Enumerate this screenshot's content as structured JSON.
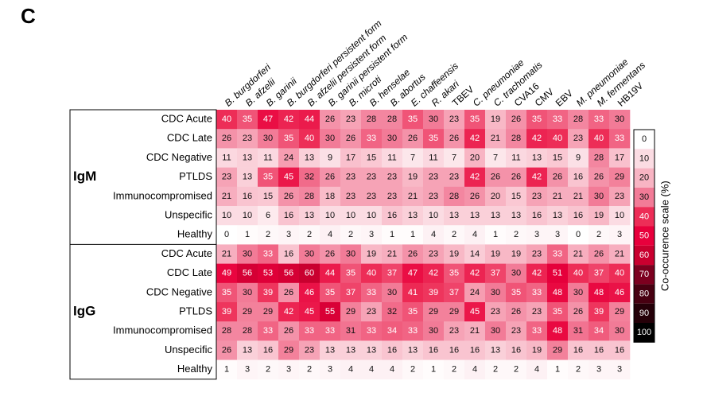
{
  "chart_data": {
    "type": "heatmap",
    "panel_label": "C",
    "columns": [
      "B. burgdorferi",
      "B. afzelii",
      "B. garinii",
      "B. burgdorferi persistent form",
      "B. afzelii persistent form",
      "B. garinii persistent form",
      "B. microti",
      "B. henselae",
      "B. abortus",
      "E. chaffeensis",
      "R. akari",
      "TBEV",
      "C. pneumoniae",
      "C. trachomatis",
      "CVA16",
      "CMV",
      "EBV",
      "M. pneumoniae",
      "M. fermentans",
      "HB19V"
    ],
    "column_italic": [
      true,
      true,
      true,
      true,
      true,
      true,
      true,
      true,
      true,
      true,
      true,
      false,
      true,
      true,
      false,
      false,
      false,
      true,
      true,
      false
    ],
    "groups": [
      {
        "name": "IgM",
        "rows": [
          "CDC Acute",
          "CDC Late",
          "CDC Negative",
          "PTLDS",
          "Immunocompromised",
          "Unspecific",
          "Healthy"
        ],
        "values": [
          [
            40,
            35,
            47,
            42,
            44,
            26,
            23,
            28,
            28,
            35,
            30,
            23,
            35,
            19,
            26,
            35,
            33,
            28,
            33,
            30
          ],
          [
            26,
            23,
            30,
            35,
            40,
            30,
            26,
            33,
            30,
            26,
            35,
            26,
            42,
            21,
            28,
            42,
            40,
            23,
            40,
            33
          ],
          [
            11,
            13,
            11,
            24,
            13,
            9,
            17,
            15,
            11,
            7,
            11,
            7,
            20,
            7,
            11,
            13,
            15,
            9,
            28,
            17
          ],
          [
            23,
            13,
            35,
            45,
            32,
            26,
            23,
            23,
            23,
            19,
            23,
            23,
            42,
            26,
            26,
            42,
            26,
            16,
            26,
            29
          ],
          [
            21,
            16,
            15,
            26,
            28,
            18,
            23,
            23,
            23,
            21,
            23,
            28,
            26,
            20,
            15,
            23,
            21,
            21,
            30,
            23
          ],
          [
            10,
            10,
            6,
            16,
            13,
            10,
            10,
            10,
            16,
            13,
            10,
            13,
            13,
            13,
            13,
            16,
            13,
            16,
            19,
            10
          ],
          [
            0,
            1,
            2,
            3,
            2,
            4,
            2,
            3,
            1,
            1,
            4,
            2,
            4,
            1,
            2,
            3,
            3,
            0,
            2,
            3
          ]
        ]
      },
      {
        "name": "IgG",
        "rows": [
          "CDC Acute",
          "CDC Late",
          "CDC Negative",
          "PTLDS",
          "Immunocompromised",
          "Unspecific",
          "Healthy"
        ],
        "values": [
          [
            21,
            30,
            33,
            16,
            30,
            26,
            30,
            19,
            21,
            26,
            23,
            19,
            14,
            19,
            19,
            23,
            33,
            21,
            26,
            21
          ],
          [
            49,
            56,
            53,
            56,
            60,
            44,
            35,
            40,
            37,
            47,
            42,
            35,
            42,
            37,
            30,
            42,
            51,
            40,
            37,
            40
          ],
          [
            35,
            30,
            39,
            26,
            46,
            35,
            37,
            33,
            30,
            41,
            39,
            37,
            24,
            30,
            35,
            33,
            48,
            30,
            48,
            46
          ],
          [
            39,
            29,
            29,
            42,
            45,
            55,
            29,
            23,
            32,
            35,
            29,
            29,
            45,
            23,
            26,
            23,
            35,
            26,
            39,
            29
          ],
          [
            28,
            28,
            33,
            26,
            33,
            33,
            31,
            33,
            34,
            33,
            30,
            23,
            21,
            30,
            23,
            33,
            48,
            31,
            34,
            30
          ],
          [
            26,
            13,
            16,
            29,
            23,
            13,
            13,
            13,
            16,
            13,
            16,
            16,
            16,
            13,
            16,
            19,
            29,
            16,
            16,
            16
          ],
          [
            1,
            3,
            2,
            3,
            2,
            3,
            4,
            4,
            4,
            2,
            1,
            2,
            4,
            2,
            2,
            4,
            1,
            2,
            3,
            3
          ]
        ]
      }
    ],
    "colorbar_title": "Co-occurence scale (%)",
    "colorbar_ticks": [
      0,
      10,
      20,
      30,
      40,
      50,
      60,
      70,
      80,
      90,
      100
    ],
    "colorbar_colors": [
      "#ffffff",
      "#fbdce3",
      "#f8b4c3",
      "#f27b97",
      "#ed2d57",
      "#e8003c",
      "#c9002f",
      "#7c001f",
      "#480011",
      "#250008",
      "#000000"
    ]
  }
}
